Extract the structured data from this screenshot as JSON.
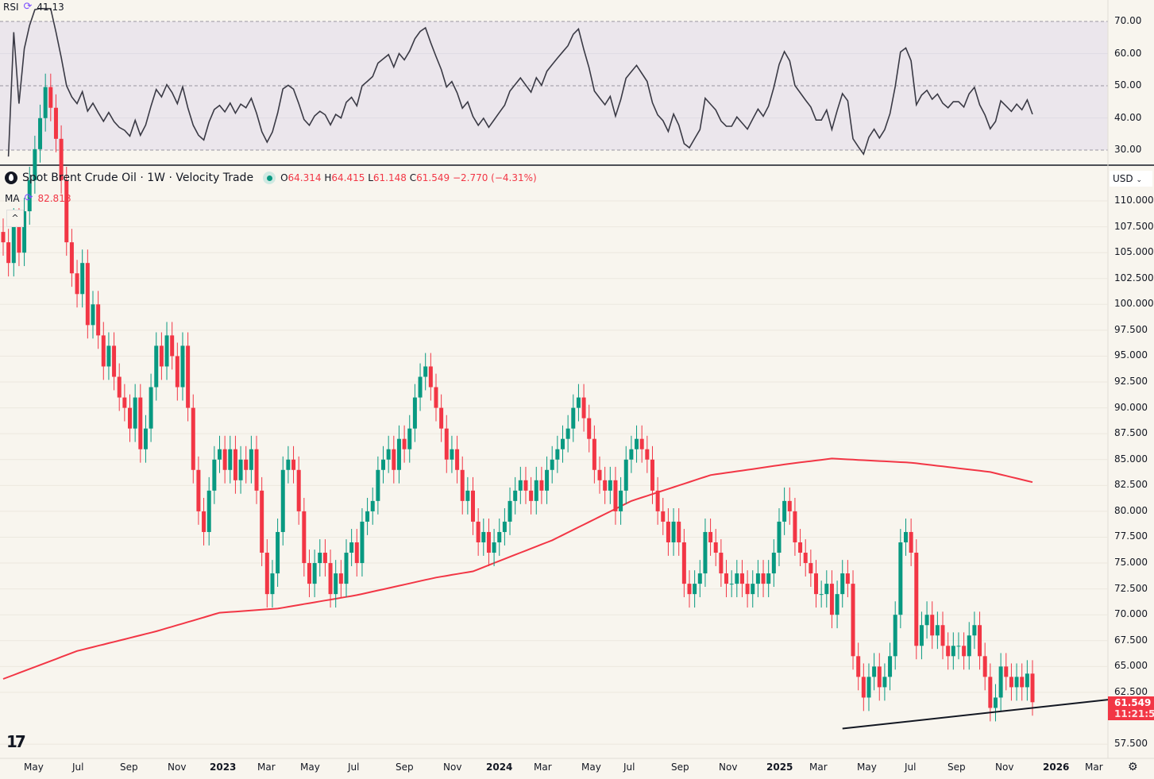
{
  "legend": {
    "title": "Spot Brent Crude Oil · 1W · Velocity Trade",
    "o_label": "O",
    "o": "64.314",
    "h_label": "H",
    "h": "64.415",
    "l_label": "L",
    "l": "61.148",
    "c_label": "C",
    "c": "61.549",
    "change": "−2.770 (−4.31%)",
    "ma_label": "MA",
    "ma_value": "82.818",
    "collapse": "^"
  },
  "rsi": {
    "label": "RSI",
    "value": "41.13",
    "ticks": [
      "70.00",
      "60.00",
      "50.00",
      "40.00",
      "30.00"
    ]
  },
  "price_axis": {
    "currency": "USD",
    "ticks": [
      "110.000",
      "107.500",
      "105.000",
      "102.500",
      "100.000",
      "97.500",
      "95.000",
      "92.500",
      "90.000",
      "87.500",
      "85.000",
      "82.500",
      "80.000",
      "77.500",
      "75.000",
      "72.500",
      "70.000",
      "67.500",
      "65.000",
      "62.500",
      "57.500"
    ],
    "last_price": "61.549",
    "countdown": "11:21:50"
  },
  "time_axis": [
    "May",
    "Jul",
    "Sep",
    "Nov",
    "2023",
    "Mar",
    "May",
    "Jul",
    "Sep",
    "Nov",
    "2024",
    "Mar",
    "May",
    "Jul",
    "Sep",
    "Nov",
    "2025",
    "Mar",
    "May",
    "Jul",
    "Sep",
    "Nov",
    "2026",
    "Mar"
  ],
  "colors": {
    "up": "#089981",
    "down": "#f23645",
    "ma": "#f23645",
    "rsi": "#3a3a45",
    "trendline": "#131722"
  },
  "chart_data": {
    "type": "candlestick",
    "ylim": [
      57.5,
      110
    ],
    "closes": [
      106,
      104,
      108,
      105,
      109,
      112,
      115,
      118,
      121,
      119,
      116,
      112,
      106,
      103,
      101,
      104,
      98,
      100,
      97,
      94,
      96,
      93,
      91,
      90,
      88,
      91,
      86,
      88,
      92,
      96,
      94,
      97,
      95,
      92,
      96,
      90,
      84,
      80,
      78,
      82,
      85,
      86,
      84,
      86,
      83,
      85,
      84,
      86,
      82,
      76,
      72,
      74,
      78,
      84,
      85,
      84,
      80,
      75,
      73,
      75,
      76,
      75,
      72,
      74,
      73,
      76,
      77,
      75,
      79,
      80,
      81,
      84,
      85,
      86,
      84,
      87,
      86,
      88,
      91,
      93,
      94,
      92,
      90,
      88,
      85,
      86,
      84,
      81,
      82,
      79,
      77,
      78,
      76,
      77,
      78,
      79,
      81,
      82,
      83,
      82,
      81,
      83,
      82,
      84,
      85,
      86,
      87,
      88,
      90,
      91,
      89,
      87,
      84,
      83,
      82,
      83,
      80,
      82,
      85,
      86,
      87,
      86,
      85,
      82,
      80,
      79,
      77,
      79,
      77,
      73,
      72,
      73,
      74,
      78,
      77,
      76,
      74,
      73,
      73,
      74,
      73,
      72,
      73,
      74,
      73,
      74,
      76,
      79,
      81,
      80,
      77,
      76,
      75,
      74,
      72,
      72,
      73,
      70,
      72,
      74,
      73,
      66,
      64,
      62,
      64,
      65,
      63,
      64,
      66,
      70,
      77,
      78,
      76,
      67,
      69,
      70,
      68,
      69,
      67,
      66,
      67,
      67,
      66,
      68,
      69,
      66,
      64,
      61,
      62,
      65,
      64,
      63,
      64,
      63,
      64.314,
      61.549
    ],
    "ma": [
      [
        0,
        63.8
      ],
      [
        14,
        66.5
      ],
      [
        29,
        68.4
      ],
      [
        41,
        70.2
      ],
      [
        52,
        70.6
      ],
      [
        67,
        71.9
      ],
      [
        82,
        73.6
      ],
      [
        89,
        74.2
      ],
      [
        104,
        77.2
      ],
      [
        119,
        81
      ],
      [
        134,
        83.5
      ],
      [
        149,
        84.6
      ],
      [
        157,
        85.1
      ],
      [
        172,
        84.7
      ],
      [
        187,
        83.8
      ],
      [
        195,
        82.818
      ]
    ],
    "trendline": [
      [
        159,
        59.0
      ],
      [
        195,
        61.0
      ]
    ],
    "rsi_ylim": [
      30,
      70
    ],
    "rsi_levels": [
      70,
      50,
      30
    ]
  }
}
